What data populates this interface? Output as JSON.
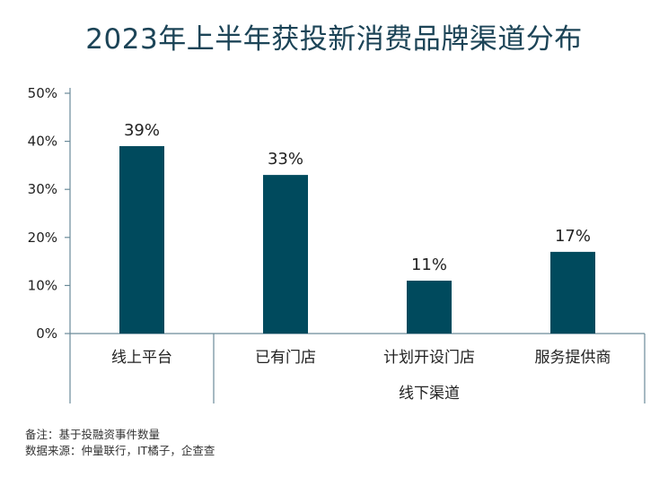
{
  "title": "2023年上半年获投新消费品牌渠道分布",
  "colors": {
    "bar": "#004a5d",
    "title": "#1c4457",
    "axis": "#6a8a99",
    "text": "#222222"
  },
  "chart_data": {
    "type": "bar",
    "categories": [
      "线上平台",
      "已有门店",
      "计划开设门店",
      "服务提供商"
    ],
    "values": [
      39,
      33,
      11,
      17
    ],
    "value_labels": [
      "39%",
      "33%",
      "11%",
      "17%"
    ],
    "yticks": [
      "0%",
      "10%",
      "20%",
      "30%",
      "40%",
      "50%"
    ],
    "ylim": [
      0,
      50
    ],
    "group_label": "线下渠道",
    "grid": false
  },
  "notes": {
    "line1": "备注：基于投融资事件数量",
    "line2": "数据来源：仲量联行，IT橘子，企查查"
  }
}
